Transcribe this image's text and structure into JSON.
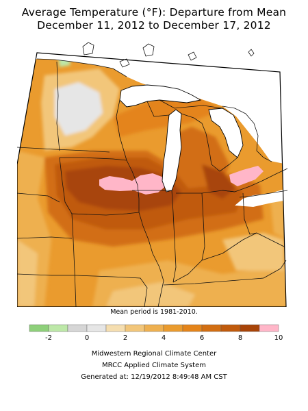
{
  "header": {
    "title_line1": "Average Temperature (°F): Departure from Mean",
    "title_line2": "December 11, 2012 to December 17, 2012"
  },
  "map": {
    "note": "Mean period is 1981-2010.",
    "region": "Midwest United States",
    "predominant_departure_range": "2 to 8 °F above mean",
    "peak_anomaly_area": "southern Minnesota / northern Iowa / southwestern Wisconsin, 8 to 10 °F",
    "colors": {
      "water": "#ffffff",
      "border": "#000000"
    }
  },
  "legend": {
    "bins": [
      {
        "from": -3,
        "to": -2,
        "color": "#8ed07a"
      },
      {
        "from": -2,
        "to": -1,
        "color": "#bde8a8"
      },
      {
        "from": -1,
        "to": 0,
        "color": "#d6d6d6"
      },
      {
        "from": 0,
        "to": 1,
        "color": "#e6e6e6"
      },
      {
        "from": 1,
        "to": 2,
        "color": "#f5deb0"
      },
      {
        "from": 2,
        "to": 3,
        "color": "#f2c67a"
      },
      {
        "from": 3,
        "to": 4,
        "color": "#eeb050"
      },
      {
        "from": 4,
        "to": 5,
        "color": "#ea9b2e"
      },
      {
        "from": 5,
        "to": 6,
        "color": "#e4841a"
      },
      {
        "from": 6,
        "to": 7,
        "color": "#d26e12"
      },
      {
        "from": 7,
        "to": 8,
        "color": "#c05a0c"
      },
      {
        "from": 8,
        "to": 9,
        "color": "#a84408"
      },
      {
        "from": 9,
        "to": 10,
        "color": "#ffb6c8"
      }
    ],
    "tick_labels": [
      "-2",
      "0",
      "2",
      "4",
      "6",
      "8",
      "10"
    ],
    "tick_values": [
      -2,
      0,
      2,
      4,
      6,
      8,
      10
    ]
  },
  "footer": {
    "line1": "Midwestern Regional Climate Center",
    "line2": "MRCC Applied Climate System",
    "line3": "Generated at: 12/19/2012 8:49:48 AM CST"
  }
}
